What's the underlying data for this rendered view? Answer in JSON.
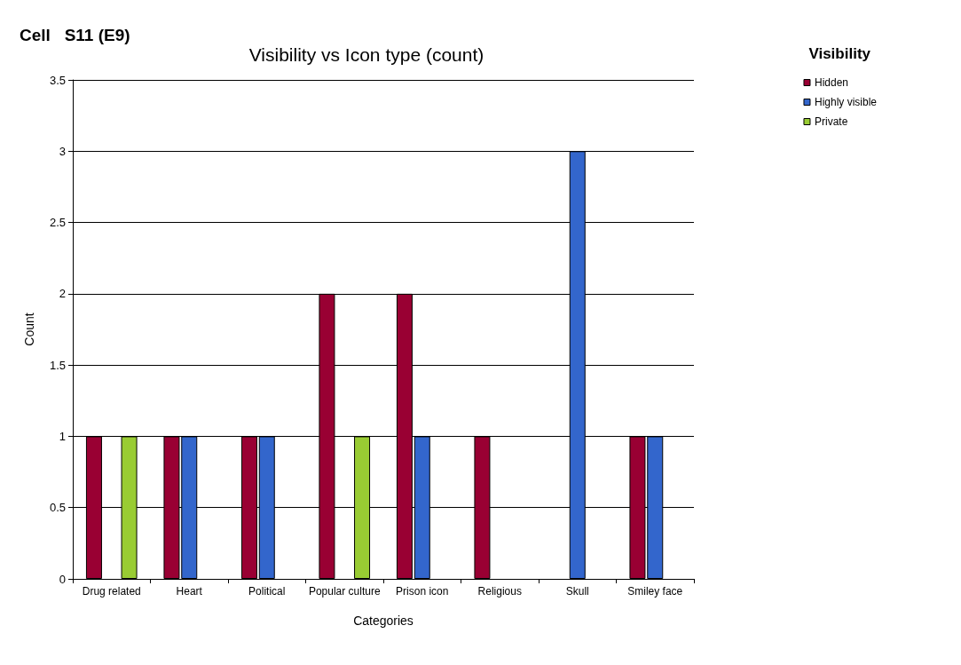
{
  "chart_data": {
    "type": "bar",
    "title": "Visibility vs Icon type (count)",
    "annotations": [
      "Cell   S11 (E9)"
    ],
    "xlabel": "Categories",
    "ylabel": "Count",
    "legend_title": "Visibility",
    "categories": [
      "Drug related",
      "Heart",
      "Political",
      "Popular culture",
      "Prison icon",
      "Religious",
      "Skull",
      "Smiley face"
    ],
    "series": [
      {
        "name": "Hidden",
        "color": "#990033",
        "values": [
          1,
          1,
          1,
          2,
          2,
          1,
          null,
          1
        ]
      },
      {
        "name": "Highly visible",
        "color": "#3366cc",
        "values": [
          null,
          1,
          1,
          null,
          1,
          null,
          3,
          1
        ]
      },
      {
        "name": "Private",
        "color": "#99cc33",
        "values": [
          1,
          null,
          null,
          1,
          null,
          null,
          null,
          null
        ]
      }
    ],
    "ylim": [
      0,
      3.5
    ],
    "yticks": [
      0,
      0.5,
      1,
      1.5,
      2,
      2.5,
      3,
      3.5
    ],
    "grid": "y",
    "legend": "top right"
  }
}
